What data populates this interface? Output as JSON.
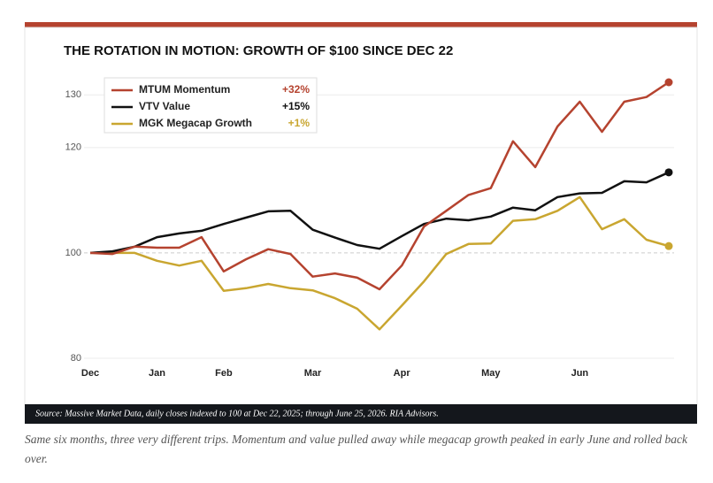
{
  "chart_data": {
    "type": "line",
    "title": "THE ROTATION IN MOTION: GROWTH OF $100 SINCE DEC 22",
    "categories": [
      "Dec",
      null,
      null,
      "Jan",
      null,
      null,
      "Feb",
      null,
      null,
      null,
      "Mar",
      null,
      null,
      null,
      "Apr",
      null,
      null,
      null,
      "May",
      null,
      null,
      null,
      "Jun",
      null,
      null,
      null,
      null
    ],
    "series": [
      {
        "name": "MTUM Momentum",
        "change": "+32%",
        "color": "#b5432f",
        "values": [
          100,
          99.8,
          101.2,
          101,
          101,
          103,
          96.5,
          98.8,
          100.7,
          99.8,
          95.5,
          96.1,
          95.3,
          93.1,
          97.6,
          105,
          108,
          111,
          112.3,
          121.2,
          116.3,
          124,
          128.7,
          123,
          128.7,
          129.6,
          132.4
        ]
      },
      {
        "name": "VTV Value",
        "change": "+15%",
        "color": "#111111",
        "values": [
          100,
          100.3,
          101.2,
          103,
          103.7,
          104.2,
          105.5,
          106.7,
          107.9,
          108,
          104.4,
          102.9,
          101.5,
          100.8,
          103.2,
          105.5,
          106.5,
          106.2,
          106.9,
          108.6,
          108.1,
          110.6,
          111.3,
          111.4,
          113.6,
          113.4,
          115.3
        ]
      },
      {
        "name": "MGK Megacap Growth",
        "change": "+1%",
        "color": "#c9a630",
        "values": [
          100,
          100,
          100,
          98.5,
          97.6,
          98.5,
          92.8,
          93.3,
          94.1,
          93.3,
          92.9,
          91.4,
          89.4,
          85.5,
          90,
          94.6,
          99.8,
          101.7,
          101.8,
          106.1,
          106.4,
          108,
          110.6,
          104.5,
          106.4,
          102.5,
          101.3
        ]
      }
    ],
    "ylim": [
      80,
      132.4
    ],
    "yticks": [
      80,
      100,
      120,
      130
    ],
    "grid": true,
    "legend": "top-left",
    "source": "Source: Massive Market Data, daily closes indexed to 100 at Dec 22, 2025; through June 25, 2026. RIA Advisors.",
    "caption": "Same six months, three very different trips. Momentum and value pulled away while megacap growth peaked in early June and rolled back over."
  }
}
